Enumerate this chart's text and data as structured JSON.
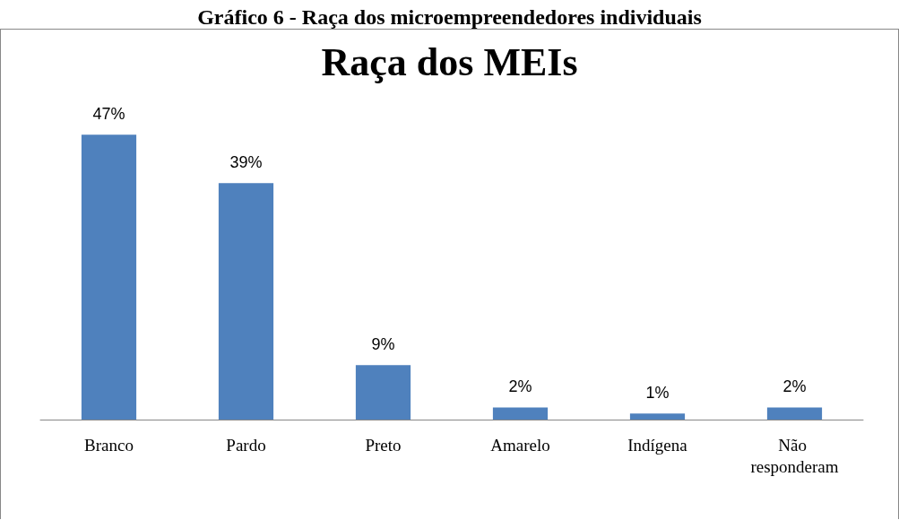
{
  "chart_data": {
    "type": "bar",
    "title": "Raça dos MEIs",
    "annotations": [
      "Gráfico 6 - Raça dos microempreendedores individuais"
    ],
    "categories": [
      "Branco",
      "Pardo",
      "Preto",
      "Amarelo",
      "Indígena",
      "Não responderam"
    ],
    "values": [
      47,
      39,
      9,
      2,
      1,
      2
    ],
    "value_labels": [
      "47%",
      "39%",
      "9%",
      "2%",
      "1%",
      "2%"
    ],
    "color": "#4f81bd"
  }
}
